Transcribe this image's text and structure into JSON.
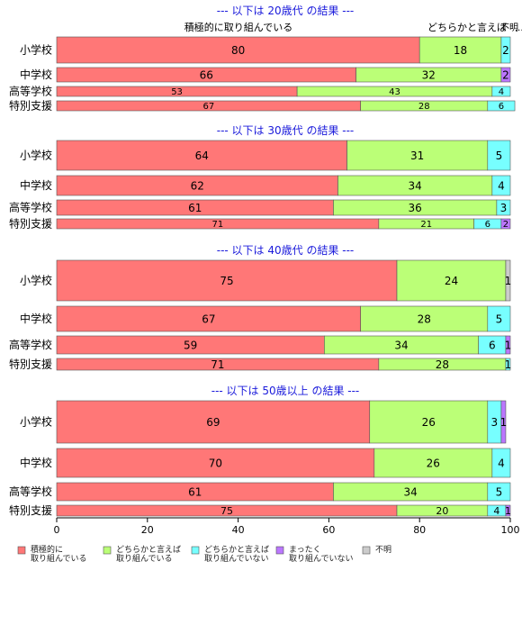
{
  "chart_data": {
    "type": "bar",
    "orientation": "horizontal",
    "stacked": true,
    "xlim": [
      0,
      100
    ],
    "x_ticks": [
      "0",
      "20",
      "40",
      "60",
      "80",
      "100"
    ],
    "header_labels": {
      "top_left": "積極的に取り組んでいる",
      "top_right_a": "どちらかと言えば",
      "top_right_b": "不明",
      "top_right_c": "..."
    },
    "legend": [
      {
        "line1": "積極的に",
        "line2": "取り組んでいる",
        "color": "#ff7777"
      },
      {
        "line1": "どちらかと言えば",
        "line2": "取り組んでいる",
        "color": "#bbff77"
      },
      {
        "line1": "どちらかと言えば",
        "line2": "取り組んでいない",
        "color": "#77ffff"
      },
      {
        "line1": "まったく",
        "line2": "取り組んでいない",
        "color": "#bb77ff"
      },
      {
        "line1": "不明",
        "line2": "",
        "color": "#cccccc"
      }
    ],
    "panels": [
      {
        "title": "--- 以下は 20歳代 の結果 ---",
        "categories": [
          "小学校",
          "中学校",
          "高等学校",
          "特別支援"
        ],
        "values": [
          [
            80,
            18,
            2,
            0,
            0
          ],
          [
            66,
            32,
            0,
            2,
            0
          ],
          [
            53,
            43,
            4,
            0,
            0
          ],
          [
            67,
            28,
            6,
            0,
            0
          ]
        ]
      },
      {
        "title": "--- 以下は 30歳代 の結果 ---",
        "categories": [
          "小学校",
          "中学校",
          "高等学校",
          "特別支援"
        ],
        "values": [
          [
            64,
            31,
            5,
            0,
            0
          ],
          [
            62,
            34,
            4,
            0,
            0
          ],
          [
            61,
            36,
            3,
            0,
            0
          ],
          [
            71,
            21,
            6,
            2,
            0
          ]
        ]
      },
      {
        "title": "--- 以下は 40歳代 の結果 ---",
        "categories": [
          "小学校",
          "中学校",
          "高等学校",
          "特別支援"
        ],
        "values": [
          [
            75,
            24,
            0,
            0,
            1
          ],
          [
            67,
            28,
            5,
            0,
            0
          ],
          [
            59,
            34,
            6,
            1,
            0
          ],
          [
            71,
            28,
            1,
            0,
            0
          ]
        ]
      },
      {
        "title": "--- 以下は 50歳以上 の結果 ---",
        "categories": [
          "小学校",
          "中学校",
          "高等学校",
          "特別支援"
        ],
        "values": [
          [
            69,
            26,
            3,
            1,
            0
          ],
          [
            70,
            26,
            4,
            0,
            0
          ],
          [
            61,
            34,
            5,
            0,
            0
          ],
          [
            75,
            20,
            4,
            1,
            0
          ]
        ]
      }
    ]
  }
}
